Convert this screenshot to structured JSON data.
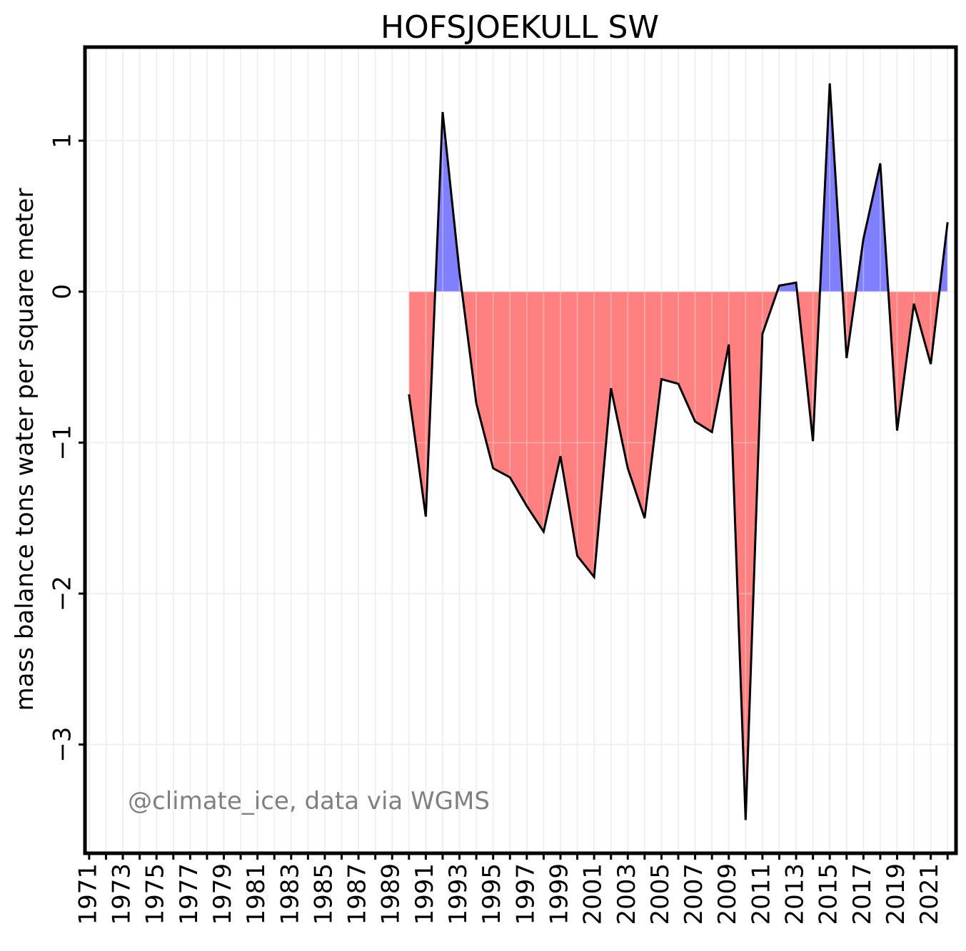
{
  "chart_data": {
    "type": "area",
    "title": "HOFSJOEKULL SW",
    "xlabel": "",
    "ylabel": "mass balance tons water per square meter",
    "annotation": "@climate_ice, data via WGMS",
    "xlim": [
      1970.75,
      1972.0
    ],
    "xlim_full": [
      1970.75,
      2022.5
    ],
    "ylim": [
      -3.72,
      1.62
    ],
    "yticks": [
      1,
      0,
      -1,
      -2,
      -3
    ],
    "ytick_labels": [
      "1",
      "0",
      "−1",
      "−2",
      "−3"
    ],
    "xticks": [
      1971,
      1972,
      1973,
      1974,
      1975,
      1976,
      1977,
      1978,
      1979,
      1980,
      1981,
      1982,
      1983,
      1984,
      1985,
      1986,
      1987,
      1988,
      1989,
      1990,
      1991,
      1992,
      1993,
      1994,
      1995,
      1996,
      1997,
      1998,
      1999,
      2000,
      2001,
      2002,
      2003,
      2004,
      2005,
      2006,
      2007,
      2008,
      2009,
      2010,
      2011,
      2012,
      2013,
      2014,
      2015,
      2016,
      2017,
      2018,
      2019,
      2020,
      2021,
      2022
    ],
    "xtick_labels": [
      "1971",
      "1973",
      "1975",
      "1977",
      "1979",
      "1981",
      "1983",
      "1985",
      "1987",
      "1989",
      "1991",
      "1993",
      "1995",
      "1997",
      "1999",
      "2001",
      "2003",
      "2005",
      "2007",
      "2009",
      "2011",
      "2013",
      "2015",
      "2017",
      "2019",
      "2021"
    ],
    "grid": true,
    "colors": {
      "positive": "#8080ff",
      "negative": "#ff8080",
      "line": "#000000",
      "grid": "#e6e6e6",
      "annotation": "#808080"
    },
    "x": [
      1990,
      1991,
      1992,
      1993,
      1994,
      1995,
      1996,
      1997,
      1998,
      1999,
      2000,
      2001,
      2002,
      2003,
      2004,
      2005,
      2006,
      2007,
      2008,
      2009,
      2010,
      2011,
      2012,
      2013,
      2014,
      2015,
      2016,
      2017,
      2018,
      2019,
      2020,
      2021,
      2022
    ],
    "series": [
      {
        "values": [
          -0.68,
          -1.49,
          1.19,
          0.13,
          -0.74,
          -1.17,
          -1.23,
          -1.42,
          -1.59,
          -1.09,
          -1.75,
          -1.89,
          -0.64,
          -1.17,
          -1.5,
          -0.58,
          -0.61,
          -0.86,
          -0.93,
          -0.35,
          -3.5,
          -0.28,
          0.04,
          0.06,
          -0.99,
          1.38,
          -0.44,
          0.35,
          0.85,
          -0.92,
          -0.08,
          -0.48,
          0.46
        ]
      }
    ]
  }
}
